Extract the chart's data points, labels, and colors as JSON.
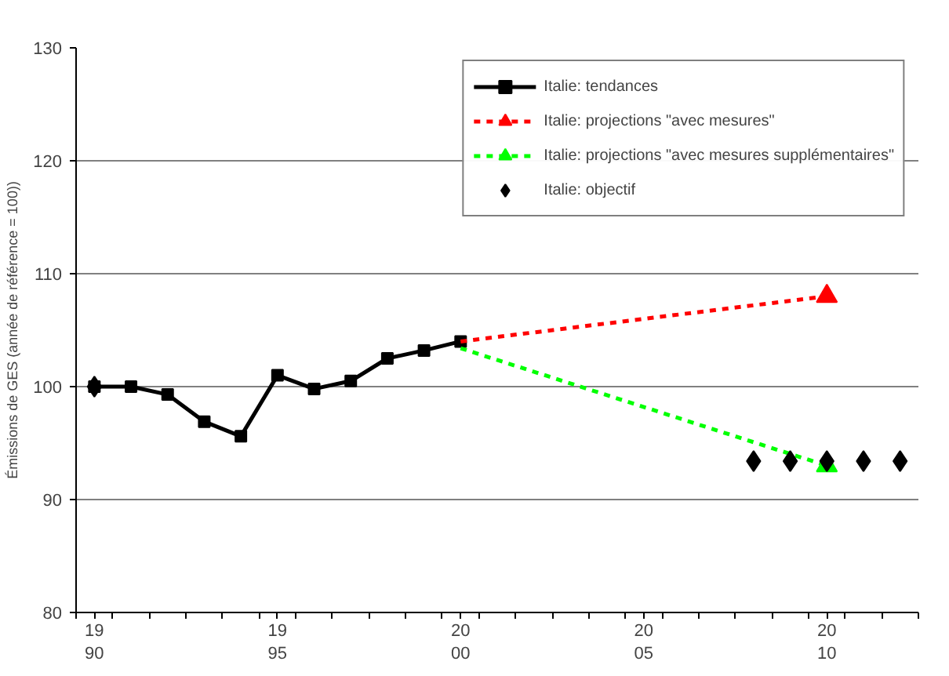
{
  "chart_data": {
    "type": "line",
    "ylabel": "Émissions de GES (année de référence = 100))",
    "xlim": [
      1989.5,
      2012.5
    ],
    "xticks": [
      1990,
      1995,
      2000,
      2005,
      2010,
      {
        "value": 1989.5,
        "label": null
      },
      {
        "value": 1990.5,
        "label": null
      },
      {
        "value": 1991.5,
        "label": null
      },
      {
        "value": 1992.5,
        "label": null
      },
      {
        "value": 1993.5,
        "label": null
      },
      {
        "value": 1994.5,
        "label": null
      },
      {
        "value": 1995.5,
        "label": null
      },
      {
        "value": 1996.5,
        "label": null
      },
      {
        "value": 1997.5,
        "label": null
      },
      {
        "value": 1998.5,
        "label": null
      },
      {
        "value": 1999.5,
        "label": null
      },
      {
        "value": 2000.5,
        "label": null
      },
      {
        "value": 2001.5,
        "label": null
      },
      {
        "value": 2002.5,
        "label": null
      },
      {
        "value": 2003.5,
        "label": null
      },
      {
        "value": 2004.5,
        "label": null
      },
      {
        "value": 2005.5,
        "label": null
      },
      {
        "value": 2006.5,
        "label": null
      },
      {
        "value": 2007.5,
        "label": null
      },
      {
        "value": 2008.5,
        "label": null
      },
      {
        "value": 2009.5,
        "label": null
      },
      {
        "value": 2010.5,
        "label": null
      },
      {
        "value": 2011.5,
        "label": null
      },
      {
        "value": 2012.5,
        "label": null
      }
    ],
    "ylim": [
      80,
      130
    ],
    "yticks": [
      80,
      90,
      100,
      110,
      120,
      130
    ],
    "grid": "y",
    "legend": "top right",
    "series": [
      {
        "name": "Italie: tendances",
        "color": "#000000",
        "marker": "square",
        "line_style": "solid",
        "x": [
          1990,
          1991,
          1992,
          1993,
          1994,
          1995,
          1996,
          1997,
          1998,
          1999,
          2000
        ],
        "values": [
          100,
          100,
          99.3,
          96.9,
          95.6,
          101,
          99.8,
          100.5,
          102.5,
          103.2,
          104
        ]
      },
      {
        "name": "Italie: projections \"avec mesures\"",
        "color": "#ff0000",
        "marker": "triangle",
        "line_style": "dashed",
        "x": [
          2000,
          2010
        ],
        "values": [
          104,
          108
        ]
      },
      {
        "name": "Italie: projections \"avec mesures supplémentaires\"",
        "color": "#00ff00",
        "marker": "triangle",
        "line_style": "dashed",
        "x": [
          2000,
          2010
        ],
        "values": [
          103.4,
          93
        ]
      },
      {
        "name": "Italie: objectif",
        "color": "#000000",
        "type": "scatter",
        "marker": "diamond",
        "x": [
          1990,
          2008,
          2009,
          2010,
          2011,
          2012
        ],
        "values": [
          100,
          93.4,
          93.4,
          93.4,
          93.4,
          93.4
        ]
      }
    ]
  }
}
